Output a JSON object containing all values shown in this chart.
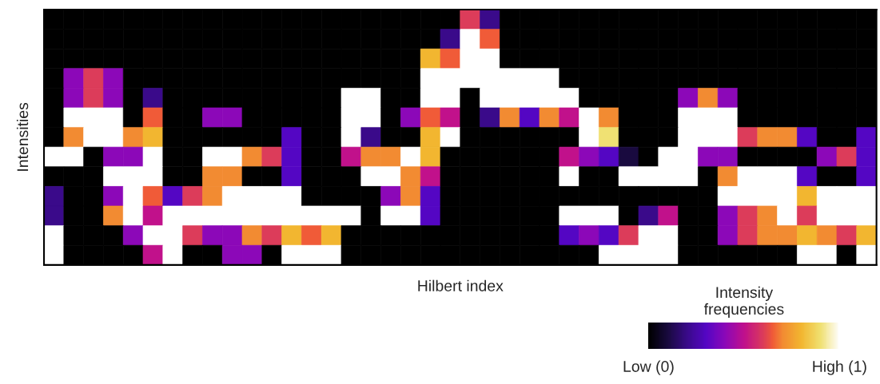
{
  "chart_data": {
    "type": "heatmap",
    "xlabel": "Hilbert index",
    "ylabel": "Intensities",
    "clabel": "Intensity frequencies",
    "categories": [
      null,
      null,
      null,
      null,
      null,
      null,
      null,
      null,
      null,
      null,
      null,
      null,
      null,
      null,
      null,
      null,
      null,
      null,
      null,
      null,
      null,
      null,
      null,
      null,
      null,
      null,
      null,
      null,
      null,
      null,
      null,
      null,
      null,
      null,
      null,
      null,
      null,
      null,
      null,
      null,
      null,
      null
    ],
    "y_categories": [
      null,
      null,
      null,
      null,
      null,
      null,
      null,
      null,
      null,
      null,
      null,
      null,
      null
    ],
    "clim": [
      0,
      1
    ],
    "cticks": [
      {
        "value": 0,
        "label": "Low (0)"
      },
      {
        "value": 1,
        "label": "High (1)"
      }
    ],
    "cells": [
      [
        0,
        0,
        0,
        0,
        0,
        0,
        0,
        0,
        0,
        0,
        0,
        0,
        0,
        0,
        0,
        0,
        0,
        0,
        0,
        0,
        0,
        0.6,
        0.2,
        0,
        0,
        0,
        0,
        0,
        0,
        0,
        0,
        0,
        0,
        0,
        0,
        0,
        0,
        0,
        0,
        0,
        0,
        0
      ],
      [
        0,
        0,
        0,
        0,
        0,
        0,
        0,
        0,
        0,
        0,
        0,
        0,
        0,
        0,
        0,
        0,
        0,
        0,
        0,
        0,
        0.2,
        1,
        0.65,
        0,
        0,
        0,
        0,
        0,
        0,
        0,
        0,
        0,
        0,
        0,
        0,
        0,
        0,
        0,
        0,
        0,
        0,
        0
      ],
      [
        0,
        0,
        0,
        0,
        0,
        0,
        0,
        0,
        0,
        0,
        0,
        0,
        0,
        0,
        0,
        0,
        0,
        0,
        0,
        0.8,
        0.65,
        1,
        1,
        0,
        0,
        0,
        0,
        0,
        0,
        0,
        0,
        0,
        0,
        0,
        0,
        0,
        0,
        0,
        0,
        0,
        0,
        0
      ],
      [
        0,
        0.4,
        0.6,
        0.4,
        0,
        0,
        0,
        0,
        0,
        0,
        0,
        0,
        0,
        0,
        0,
        0,
        0,
        0,
        0,
        1,
        1,
        1,
        1,
        1,
        1,
        1,
        0,
        0,
        0,
        0,
        0,
        0,
        0,
        0,
        0,
        0,
        0,
        0,
        0,
        0,
        0,
        0
      ],
      [
        0,
        0.4,
        0.6,
        0.4,
        0,
        0.2,
        0,
        0,
        0,
        0,
        0,
        0,
        0,
        0,
        0,
        1,
        1,
        0,
        0,
        1,
        1,
        0,
        1,
        1,
        1,
        1,
        1,
        0,
        0,
        0,
        0,
        0,
        0.4,
        0.7,
        0.4,
        0,
        0,
        0,
        0,
        0,
        0,
        0
      ],
      [
        0,
        1,
        1,
        1,
        0,
        0.65,
        0,
        0,
        0.4,
        0.4,
        0,
        0,
        0,
        0,
        0,
        1,
        1,
        0,
        0.4,
        0.65,
        0.5,
        0,
        0.2,
        0.7,
        0.3,
        0.7,
        0.5,
        1,
        0.7,
        0,
        0,
        0,
        1,
        1,
        1,
        0,
        0,
        0,
        0,
        0,
        0,
        0
      ],
      [
        0,
        0.7,
        1,
        1,
        0.7,
        0.8,
        0,
        0,
        0,
        0,
        0,
        0,
        0.3,
        0,
        0,
        1,
        0.2,
        0,
        0,
        0.8,
        1,
        0,
        0,
        0,
        0,
        0,
        0,
        1,
        0.9,
        0,
        0,
        0,
        1,
        1,
        1,
        0.6,
        0.7,
        0.7,
        0.3,
        0,
        0,
        0.3
      ],
      [
        1,
        1,
        0,
        0.4,
        0.4,
        1,
        0,
        0,
        1,
        1,
        0.7,
        0.6,
        0.3,
        0,
        0,
        0.5,
        0.7,
        0.7,
        1,
        0.8,
        0,
        0,
        0,
        0,
        0,
        0,
        0.5,
        0.4,
        0.3,
        0.1,
        0,
        1,
        1,
        0.4,
        0.4,
        0,
        0,
        0,
        0,
        0.4,
        0.6,
        0.3
      ],
      [
        0,
        0,
        0,
        1,
        1,
        1,
        0,
        0,
        0.7,
        0.7,
        0,
        0,
        0.3,
        0,
        0,
        0,
        1,
        1,
        0.7,
        0.5,
        0,
        0,
        0,
        0,
        0,
        0,
        1,
        0,
        0,
        1,
        1,
        1,
        1,
        0,
        0.7,
        1,
        1,
        1,
        0.3,
        0,
        0,
        0.3
      ],
      [
        0.2,
        0,
        0,
        0.4,
        1,
        0.65,
        0.3,
        0.6,
        0.7,
        1,
        1,
        1,
        1,
        0,
        0,
        0,
        0,
        0.4,
        0.7,
        0.3,
        0,
        0,
        0,
        0,
        0,
        0,
        0,
        0,
        0,
        0,
        0,
        0,
        0,
        0,
        1,
        1,
        1,
        1,
        0.8,
        1,
        1,
        1
      ],
      [
        0.2,
        0,
        0,
        0.7,
        1,
        0.5,
        1,
        1,
        1,
        1,
        1,
        1,
        1,
        1,
        1,
        1,
        0,
        1,
        1,
        0.3,
        0,
        0,
        0,
        0,
        0,
        0,
        1,
        1,
        1,
        0,
        0.2,
        0.5,
        0,
        0,
        0.4,
        0.6,
        0.7,
        1,
        0.6,
        1,
        1,
        1
      ],
      [
        1,
        0,
        0,
        0,
        0.4,
        1,
        1,
        0.6,
        0.4,
        0.4,
        0.7,
        0.6,
        0.8,
        0.65,
        0.8,
        0,
        0,
        0,
        0,
        0,
        0,
        0,
        0,
        0,
        0,
        0,
        0.3,
        0.4,
        0.3,
        0.6,
        1,
        1,
        0,
        0,
        0.4,
        0.6,
        0.7,
        0.7,
        0.8,
        0.7,
        0.6,
        0.8
      ],
      [
        1,
        0,
        0,
        0,
        0,
        0.5,
        1,
        0,
        0,
        0.4,
        0.4,
        0,
        1,
        1,
        1,
        0,
        0,
        0,
        0,
        0,
        0,
        0,
        0,
        0,
        0,
        0,
        0,
        0,
        1,
        1,
        1,
        1,
        0,
        0,
        0,
        0,
        0,
        0,
        1,
        1,
        0,
        1
      ]
    ]
  }
}
